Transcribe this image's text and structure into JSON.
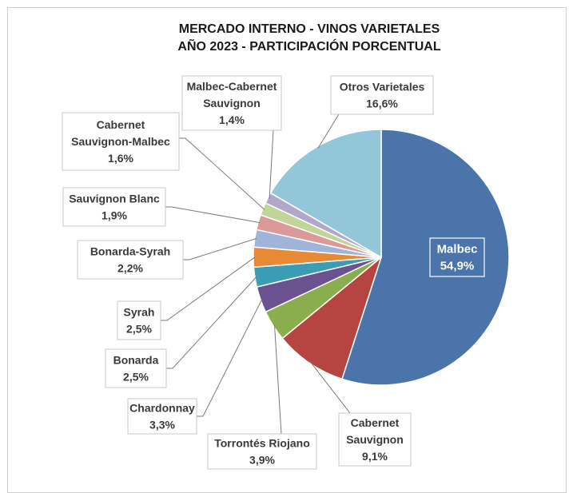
{
  "chart_data": {
    "type": "pie",
    "title": [
      "MERCADO INTERNO - VINOS VARIETALES",
      "AÑO 2023 - PARTICIPACIÓN PORCENTUAL"
    ],
    "slices": [
      {
        "name": [
          "Malbec"
        ],
        "value": 54.9,
        "pct": "54,9%",
        "color": "#4a74aa"
      },
      {
        "name": [
          "Cabernet",
          "Sauvignon"
        ],
        "value": 9.1,
        "pct": "9,1%",
        "color": "#b64542"
      },
      {
        "name": [
          "Torrontés Riojano"
        ],
        "value": 3.9,
        "pct": "3,9%",
        "color": "#8aad4e"
      },
      {
        "name": [
          "Chardonnay"
        ],
        "value": 3.3,
        "pct": "3,3%",
        "color": "#6a5190"
      },
      {
        "name": [
          "Bonarda"
        ],
        "value": 2.5,
        "pct": "2,5%",
        "color": "#3a9db5"
      },
      {
        "name": [
          "Syrah"
        ],
        "value": 2.5,
        "pct": "2,5%",
        "color": "#e88a35"
      },
      {
        "name": [
          "Bonarda-Syrah"
        ],
        "value": 2.2,
        "pct": "2,2%",
        "color": "#9fb4d8"
      },
      {
        "name": [
          "Sauvignon Blanc"
        ],
        "value": 1.9,
        "pct": "1,9%",
        "color": "#d99a98"
      },
      {
        "name": [
          "Cabernet",
          "Sauvignon-Malbec"
        ],
        "value": 1.6,
        "pct": "1,6%",
        "color": "#c1d59b"
      },
      {
        "name": [
          "Malbec-Cabernet",
          "Sauvignon"
        ],
        "value": 1.4,
        "pct": "1,4%",
        "color": "#b3a7c7"
      },
      {
        "name": [
          "Otros Varietales"
        ],
        "value": 16.6,
        "pct": "16,6%",
        "color": "#93c6d9"
      }
    ]
  }
}
